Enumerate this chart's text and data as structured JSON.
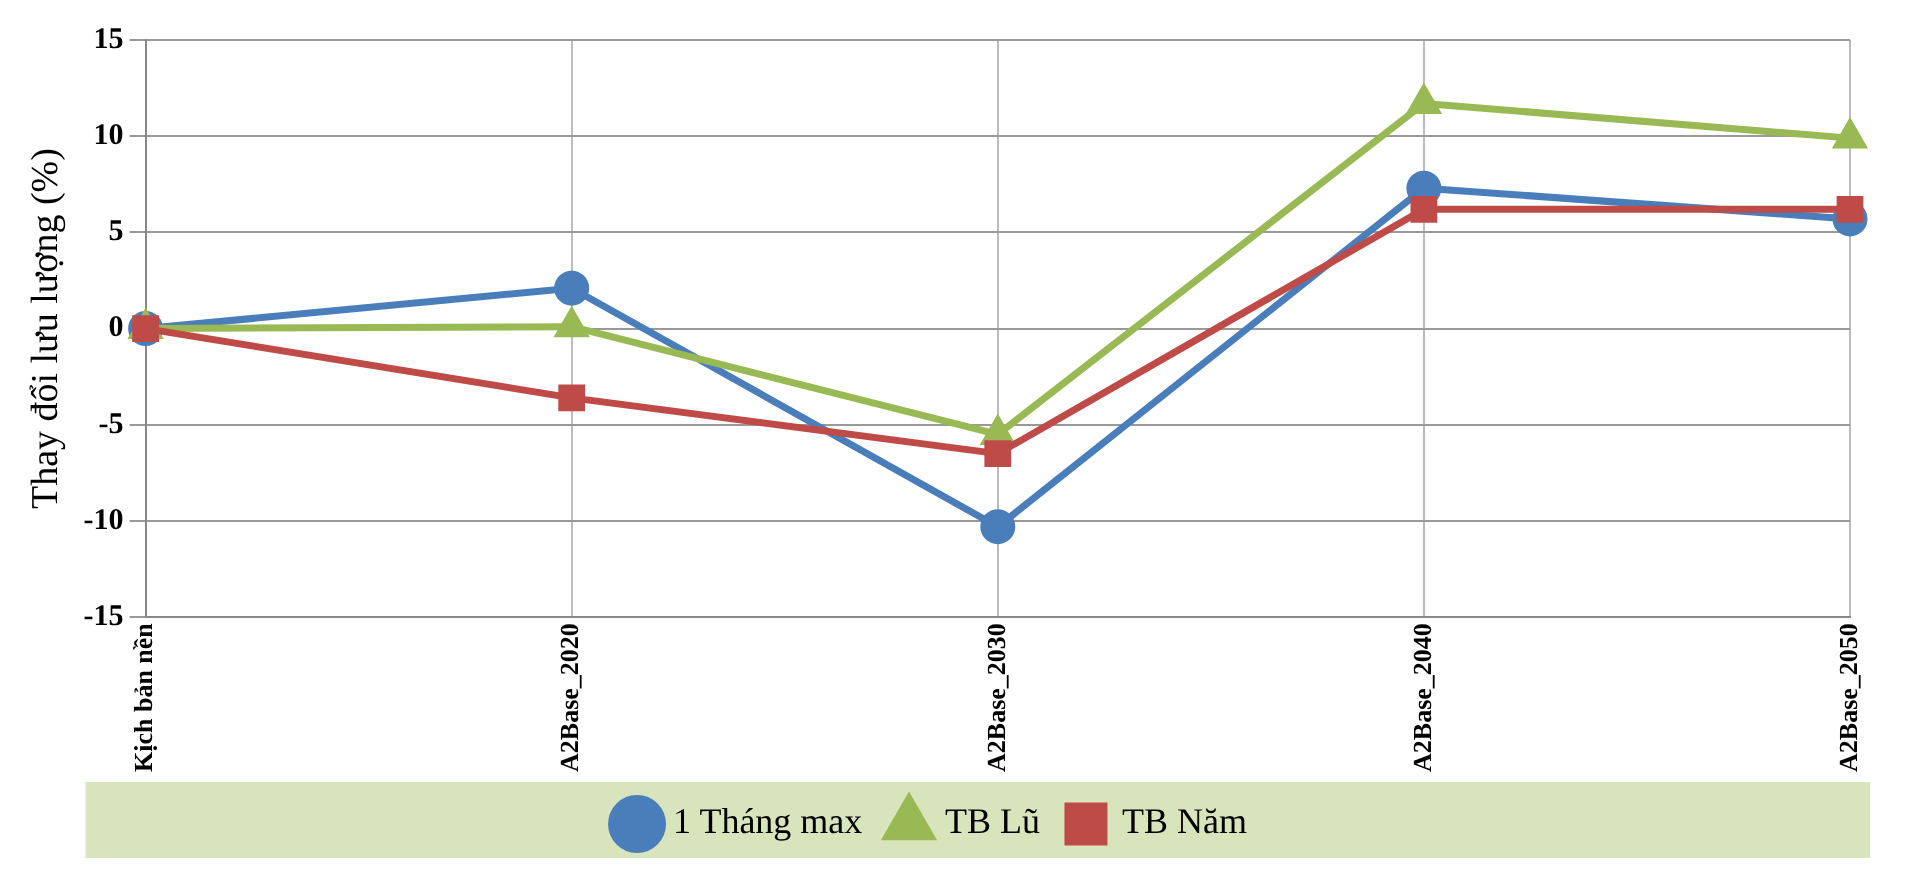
{
  "chart_data": {
    "type": "line",
    "ylabel": "Thay đổi lưu lượng (%)",
    "categories": [
      "Kịch bản nền",
      "A2Base_2020",
      "A2Base_2030",
      "A2Base_2040",
      "A2Base_2050"
    ],
    "series": [
      {
        "name": "1 Tháng max",
        "color": "#4a7ebb",
        "marker": "circle",
        "values": [
          0,
          2.1,
          -10.3,
          7.3,
          5.7
        ]
      },
      {
        "name": "TB Lũ",
        "color": "#98b954",
        "marker": "triangle",
        "values": [
          0,
          0.1,
          -5.5,
          11.7,
          9.9
        ]
      },
      {
        "name": "TB Năm",
        "color": "#be4b48",
        "marker": "square",
        "values": [
          0,
          -3.6,
          -6.5,
          6.2,
          6.2
        ]
      }
    ],
    "ylim": [
      -15,
      15
    ],
    "yticks": [
      -15,
      -10,
      -5,
      0,
      5,
      10,
      15
    ],
    "grid": true,
    "legend": "bottom",
    "line_style": "solid"
  }
}
